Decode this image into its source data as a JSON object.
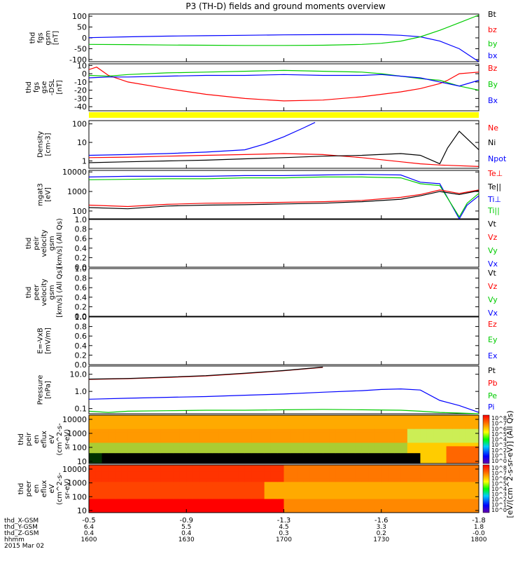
{
  "title": "P3 (TH-D) fields and ground moments overview",
  "chart_data": [
    {
      "id": "fgs_gsm",
      "type": "line",
      "ylabel": [
        "thd",
        "fgs",
        "gsm",
        "[nT]"
      ],
      "yticks": [
        100,
        50,
        0,
        -50,
        -100
      ],
      "ylim": [
        -110,
        110
      ],
      "legend": [
        {
          "name": "Bt",
          "color": "#000000"
        },
        {
          "name": "bz",
          "color": "#ff0000"
        },
        {
          "name": "by",
          "color": "#00cc00"
        },
        {
          "name": "bx",
          "color": "#0000ff"
        }
      ],
      "series": [
        {
          "name": "bx",
          "color": "#0000ff",
          "x": [
            0,
            0.1,
            0.2,
            0.3,
            0.4,
            0.5,
            0.6,
            0.7,
            0.75,
            0.8,
            0.85,
            0.9,
            0.95,
            1.0
          ],
          "y": [
            1,
            5,
            8,
            10,
            12,
            14,
            15,
            16,
            15,
            12,
            5,
            -15,
            -50,
            -110
          ]
        },
        {
          "name": "by",
          "color": "#00cc00",
          "x": [
            0,
            0.1,
            0.2,
            0.3,
            0.4,
            0.5,
            0.6,
            0.7,
            0.75,
            0.8,
            0.85,
            0.9,
            0.95,
            1.0
          ],
          "y": [
            -30,
            -31,
            -33,
            -34,
            -35,
            -35,
            -34,
            -30,
            -25,
            -15,
            5,
            35,
            70,
            105
          ]
        }
      ]
    },
    {
      "id": "fgs_gse",
      "type": "line",
      "ylabel": [
        "thd",
        "fgs",
        "gse",
        "-DSL",
        "[nT]"
      ],
      "yticks": [
        10,
        0,
        -10,
        -20,
        -30,
        -40
      ],
      "ylim": [
        -45,
        12
      ],
      "legend": [
        {
          "name": "Bz",
          "color": "#ff0000"
        },
        {
          "name": "By",
          "color": "#00cc00"
        },
        {
          "name": "Bx",
          "color": "#0000ff"
        }
      ],
      "series": [
        {
          "name": "Bz",
          "color": "#ff0000",
          "x": [
            0,
            0.02,
            0.05,
            0.1,
            0.2,
            0.3,
            0.4,
            0.5,
            0.6,
            0.7,
            0.75,
            0.8,
            0.85,
            0.9,
            0.92,
            0.95,
            1.0
          ],
          "y": [
            5,
            8,
            -2,
            -10,
            -18,
            -25,
            -30,
            -33,
            -32,
            -28,
            -25,
            -22,
            -18,
            -12,
            -8,
            0,
            2
          ]
        },
        {
          "name": "By",
          "color": "#00cc00",
          "x": [
            0,
            0.05,
            0.1,
            0.2,
            0.3,
            0.4,
            0.5,
            0.6,
            0.7,
            0.75,
            0.8,
            0.85,
            0.9,
            0.95,
            1.0
          ],
          "y": [
            -2,
            -3,
            -1,
            1,
            2,
            3,
            4,
            3,
            2,
            0,
            -3,
            -6,
            -8,
            -15,
            -20
          ]
        },
        {
          "name": "Bx",
          "color": "#0000ff",
          "x": [
            0,
            0.05,
            0.1,
            0.2,
            0.3,
            0.4,
            0.5,
            0.6,
            0.7,
            0.75,
            0.8,
            0.85,
            0.9,
            0.95,
            1.0
          ],
          "y": [
            -5,
            -4,
            -4,
            -3,
            -2,
            -2,
            -1,
            -2,
            -2,
            -1,
            -3,
            -5,
            -10,
            -15,
            -8
          ]
        }
      ]
    },
    {
      "id": "density",
      "type": "line",
      "log": true,
      "ylabel": [
        "Density",
        "[cm-3]"
      ],
      "yticks": [
        100,
        10,
        1
      ],
      "ylim": [
        0.4,
        150
      ],
      "legend": [
        {
          "name": "Ne",
          "color": "#ff0000"
        },
        {
          "name": "Ni",
          "color": "#000000"
        },
        {
          "name": "Npot",
          "color": "#0000ff"
        }
      ],
      "series": [
        {
          "name": "Npot",
          "color": "#0000ff",
          "x": [
            0,
            0.1,
            0.2,
            0.3,
            0.4,
            0.45,
            0.5,
            0.55,
            0.58
          ],
          "y": [
            2,
            2.2,
            2.5,
            3,
            4,
            8,
            20,
            60,
            120
          ]
        },
        {
          "name": "Ne",
          "color": "#ff0000",
          "x": [
            0,
            0.1,
            0.2,
            0.3,
            0.4,
            0.5,
            0.6,
            0.7,
            0.8,
            0.85,
            0.9,
            1.0
          ],
          "y": [
            1.5,
            1.6,
            1.8,
            2,
            2.2,
            2.5,
            2.2,
            1.5,
            0.9,
            0.7,
            0.6,
            0.5
          ]
        },
        {
          "name": "Ni",
          "color": "#000000",
          "x": [
            0,
            0.1,
            0.2,
            0.3,
            0.4,
            0.5,
            0.6,
            0.7,
            0.8,
            0.85,
            0.9,
            0.92,
            0.95,
            1.0
          ],
          "y": [
            0.8,
            0.9,
            1,
            1.1,
            1.3,
            1.5,
            1.8,
            2,
            2.5,
            2,
            0.7,
            5,
            40,
            4
          ]
        }
      ]
    },
    {
      "id": "temperature",
      "type": "line",
      "log": true,
      "ylabel": [
        "mgat3",
        "[eV]"
      ],
      "yticks": [
        10000,
        1000,
        100
      ],
      "ylim": [
        40,
        12000
      ],
      "legend": [
        {
          "name": "Te⊥",
          "color": "#ff0000"
        },
        {
          "name": "Te||",
          "color": "#000000"
        },
        {
          "name": "Ti⊥",
          "color": "#0000ff"
        },
        {
          "name": "Ti||",
          "color": "#00cc00"
        }
      ],
      "series": [
        {
          "name": "Ti⊥",
          "color": "#0000ff",
          "x": [
            0,
            0.1,
            0.2,
            0.3,
            0.4,
            0.5,
            0.6,
            0.7,
            0.8,
            0.85,
            0.9,
            0.95,
            0.97,
            1.0
          ],
          "y": [
            5500,
            6000,
            6000,
            6000,
            6500,
            6500,
            7000,
            7500,
            7000,
            3000,
            2500,
            40,
            200,
            600
          ]
        },
        {
          "name": "Ti||",
          "color": "#00cc00",
          "x": [
            0,
            0.1,
            0.2,
            0.3,
            0.4,
            0.5,
            0.6,
            0.7,
            0.8,
            0.85,
            0.9,
            0.95,
            0.97,
            1.0
          ],
          "y": [
            4000,
            4200,
            4500,
            4500,
            5000,
            5000,
            5500,
            5500,
            5000,
            2500,
            2000,
            50,
            250,
            800
          ]
        },
        {
          "name": "Te⊥",
          "color": "#ff0000",
          "x": [
            0,
            0.1,
            0.2,
            0.3,
            0.4,
            0.5,
            0.6,
            0.7,
            0.8,
            0.85,
            0.9,
            0.95,
            1.0
          ],
          "y": [
            200,
            170,
            220,
            250,
            260,
            280,
            300,
            350,
            500,
            700,
            1200,
            800,
            1200
          ]
        },
        {
          "name": "Te||",
          "color": "#000000",
          "x": [
            0,
            0.1,
            0.2,
            0.3,
            0.4,
            0.5,
            0.6,
            0.7,
            0.8,
            0.85,
            0.9,
            0.95,
            1.0
          ],
          "y": [
            150,
            130,
            180,
            200,
            210,
            230,
            250,
            300,
            400,
            600,
            1000,
            700,
            1100
          ]
        }
      ]
    },
    {
      "id": "peir_velocity",
      "type": "line",
      "ylabel": [
        "thd",
        "peir",
        "velocity",
        "gsm",
        "[km/s] (All Qs)"
      ],
      "yticks": [
        1.0,
        0.8,
        0.6,
        0.4,
        0.2,
        0.0
      ],
      "ylim": [
        0,
        1
      ],
      "legend": [
        {
          "name": "Vt",
          "color": "#000000"
        },
        {
          "name": "Vz",
          "color": "#ff0000"
        },
        {
          "name": "Vy",
          "color": "#00cc00"
        },
        {
          "name": "Vx",
          "color": "#0000ff"
        }
      ],
      "series": []
    },
    {
      "id": "peer_velocity",
      "type": "line",
      "ylabel": [
        "thd",
        "peer",
        "velocity",
        "gsm",
        "[km/s] (All Qs)"
      ],
      "yticks": [
        1.0,
        0.8,
        0.6,
        0.4,
        0.2,
        0.0
      ],
      "ylim": [
        0,
        1
      ],
      "legend": [
        {
          "name": "Vt",
          "color": "#000000"
        },
        {
          "name": "Vz",
          "color": "#ff0000"
        },
        {
          "name": "Vy",
          "color": "#00cc00"
        },
        {
          "name": "Vx",
          "color": "#0000ff"
        }
      ],
      "series": []
    },
    {
      "id": "efield",
      "type": "line",
      "ylabel": [
        "E=-VxB",
        "[mV/m]"
      ],
      "yticks": [
        1.0,
        0.8,
        0.6,
        0.4,
        0.2,
        0.0
      ],
      "ylim": [
        0,
        1
      ],
      "legend": [
        {
          "name": "Ez",
          "color": "#ff0000"
        },
        {
          "name": "Ey",
          "color": "#00cc00"
        },
        {
          "name": "Ex",
          "color": "#0000ff"
        }
      ],
      "series": []
    },
    {
      "id": "pressure",
      "type": "line",
      "log": true,
      "ylabel": [
        "Pressure",
        "[nPa]"
      ],
      "yticks": [
        10.0,
        1.0,
        0.1
      ],
      "ylim": [
        0.05,
        30
      ],
      "legend": [
        {
          "name": "Pt",
          "color": "#000000"
        },
        {
          "name": "Pb",
          "color": "#ff0000"
        },
        {
          "name": "Pe",
          "color": "#00cc00"
        },
        {
          "name": "Pi",
          "color": "#0000ff"
        }
      ],
      "series": [
        {
          "name": "Pb",
          "color": "#ff0000",
          "x": [
            0,
            0.1,
            0.2,
            0.3,
            0.4,
            0.5,
            0.6
          ],
          "y": [
            5,
            5.5,
            6.5,
            8,
            11,
            16,
            25
          ]
        },
        {
          "name": "Pt",
          "color": "#000000",
          "x": [
            0,
            0.1,
            0.2,
            0.3,
            0.4,
            0.5,
            0.6
          ],
          "y": [
            5.2,
            5.7,
            6.8,
            8.3,
            11.5,
            16.5,
            26
          ]
        },
        {
          "name": "Pi",
          "color": "#0000ff",
          "x": [
            0,
            0.1,
            0.2,
            0.3,
            0.4,
            0.5,
            0.6,
            0.7,
            0.75,
            0.8,
            0.85,
            0.9,
            0.95,
            1.0
          ],
          "y": [
            0.35,
            0.4,
            0.45,
            0.5,
            0.6,
            0.7,
            0.9,
            1.1,
            1.3,
            1.4,
            1.2,
            0.3,
            0.15,
            0.06
          ]
        },
        {
          "name": "Pe",
          "color": "#00cc00",
          "x": [
            0,
            0.05,
            0.1,
            0.2,
            0.3,
            0.4,
            0.5,
            0.6,
            0.7,
            0.8,
            0.85,
            0.9,
            0.95,
            1.0
          ],
          "y": [
            0.07,
            0.06,
            0.07,
            0.075,
            0.08,
            0.08,
            0.085,
            0.09,
            0.085,
            0.08,
            0.07,
            0.06,
            0.055,
            0.05
          ]
        }
      ]
    },
    {
      "id": "peir_spec",
      "type": "heatmap",
      "ylabel": [
        "thd",
        "peir",
        "en",
        "eflux",
        "eV",
        "(cm^2-s-",
        "sr-eV)"
      ],
      "yticks": [
        10000,
        1000,
        100,
        10
      ]
    },
    {
      "id": "peer_spec",
      "type": "heatmap",
      "ylabel": [
        "thd",
        "peer",
        "en",
        "eflux",
        "eV",
        "(cm^2-s-",
        "sr-eV)"
      ],
      "yticks": [
        10000,
        1000,
        100,
        10
      ]
    }
  ],
  "colorbar": {
    "ticks": [
      "10^8",
      "10^7",
      "10^6",
      "10^5",
      "10^4",
      "10^3",
      "10^2",
      "10^1",
      "10^0"
    ],
    "label": "[eV/(cm^2-s-sr-eV)] (All Qs)"
  },
  "xaxis": {
    "tick_values": [
      "-0.5",
      "-0.9",
      "-1.3",
      "-1.6",
      "-1.8"
    ],
    "rows": [
      {
        "label": "thd_X-GSM",
        "values": [
          "-0.5",
          "-0.9",
          "-1.3",
          "-1.6",
          "-1.8"
        ]
      },
      {
        "label": "thd_Y-GSM",
        "values": [
          "6.4",
          "5.5",
          "4.5",
          "3.3",
          "1.8"
        ]
      },
      {
        "label": "thd_Z-GSM",
        "values": [
          "0.4",
          "0.4",
          "0.3",
          "0.2",
          "-0.0"
        ]
      },
      {
        "label": "hhmm",
        "values": [
          "1600",
          "1630",
          "1700",
          "1730",
          "1800"
        ]
      }
    ],
    "date": "2015 Mar 02"
  },
  "colors": {
    "yellow_bar": "#ffff00"
  }
}
